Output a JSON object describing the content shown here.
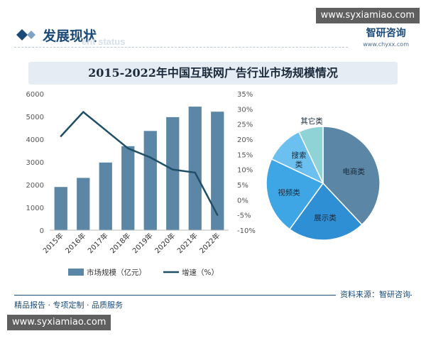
{
  "watermark_top": "www.syxiamiao.com",
  "watermark_bottom": "www.syxiamiao.com",
  "section": {
    "title": "发展现状",
    "subtitle": "ent status"
  },
  "brand": {
    "name": "智研咨询",
    "url": "www.chyxx.com"
  },
  "footer": {
    "left": "精品报告 · 专项定制 · 品质服务",
    "source": "资料来源：智研咨询"
  },
  "colors": {
    "bar": "#5b86a5",
    "line": "#1e4f66",
    "pie": [
      "#5b86a5",
      "#2e8fd4",
      "#3fa6e6",
      "#6cc0ef",
      "#8fd3d6"
    ]
  },
  "chart_data": [
    {
      "type": "bar",
      "title": "2015-2022年中国互联网广告行业市场规模情况",
      "categories": [
        "2015年",
        "2016年",
        "2017年",
        "2018年",
        "2019年",
        "2020年",
        "2021年",
        "2022年"
      ],
      "series": [
        {
          "name": "市场规模（亿元）",
          "type": "bar",
          "axis": "left",
          "values": [
            1900,
            2300,
            2975,
            3695,
            4365,
            4972,
            5435,
            5213
          ]
        },
        {
          "name": "增速（%）",
          "type": "line",
          "axis": "right",
          "values": [
            21,
            29,
            23,
            17,
            14,
            10,
            9,
            -5
          ]
        }
      ],
      "ylim": [
        0,
        6000
      ],
      "yticks": [
        0,
        1000,
        2000,
        3000,
        4000,
        5000,
        6000
      ],
      "y2lim": [
        -10,
        35
      ],
      "y2ticks": [
        -10,
        -5,
        0,
        5,
        10,
        15,
        20,
        25,
        30,
        35
      ],
      "y2tick_labels": [
        "-10%",
        "-5%",
        "0%",
        "5%",
        "10%",
        "15%",
        "20%",
        "25%",
        "30%",
        "35%"
      ],
      "legend": "bottom"
    },
    {
      "type": "pie",
      "labels": [
        "电商类",
        "展示类",
        "视频类",
        "搜索类",
        "其它类"
      ],
      "values": [
        38,
        22,
        22,
        11,
        7
      ]
    }
  ]
}
